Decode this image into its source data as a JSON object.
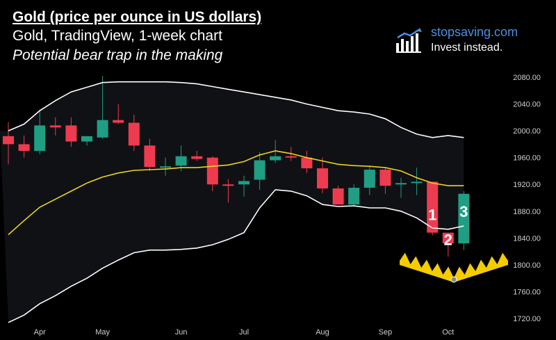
{
  "header": {
    "title": "Gold (price per ounce in US dollars)",
    "subtitle": "Gold, TradingView, 1-week chart",
    "caption": "Potential bear trap in the making"
  },
  "brand": {
    "name": "stopsaving.com",
    "tagline": "Invest instead.",
    "icon": "bar-chart-arrow-icon"
  },
  "colors": {
    "background": "#000000",
    "band_fill": "#0f1115",
    "band_line": "#ffffff",
    "basis_line": "#f0d21e",
    "up": "#1f9e84",
    "down": "#ef3b4f",
    "marker_fill": "#f5cc00",
    "axis_text": "#cfcfcf"
  },
  "chart_data": {
    "type": "candlestick",
    "interval": "1 week",
    "ylim": [
      1710,
      2100
    ],
    "yticks": [
      1720,
      1760,
      1800,
      1840,
      1880,
      1920,
      1960,
      2000,
      2040,
      2080
    ],
    "ytick_labels": [
      "1720.00",
      "1760.00",
      "1800.00",
      "1840.00",
      "1880.00",
      "1920.00",
      "1960.00",
      "2000.00",
      "2040.00",
      "2080.00"
    ],
    "xtick_labels": [
      {
        "label": "Apr",
        "index": 2
      },
      {
        "label": "May",
        "index": 6
      },
      {
        "label": "Jun",
        "index": 11
      },
      {
        "label": "Jul",
        "index": 15
      },
      {
        "label": "Aug",
        "index": 20
      },
      {
        "label": "Sep",
        "index": 24
      },
      {
        "label": "Oct",
        "index": 28
      }
    ],
    "candles": [
      {
        "o": 1992,
        "h": 2013,
        "l": 1950,
        "c": 1980
      },
      {
        "o": 1980,
        "h": 1993,
        "l": 1960,
        "c": 1970
      },
      {
        "o": 1970,
        "h": 2032,
        "l": 1965,
        "c": 2008
      },
      {
        "o": 2008,
        "h": 2020,
        "l": 1993,
        "c": 2005
      },
      {
        "o": 2008,
        "h": 2020,
        "l": 1976,
        "c": 1984
      },
      {
        "o": 1984,
        "h": 1992,
        "l": 1978,
        "c": 1992
      },
      {
        "o": 1990,
        "h": 2082,
        "l": 1988,
        "c": 2016
      },
      {
        "o": 2016,
        "h": 2040,
        "l": 2010,
        "c": 2012
      },
      {
        "o": 2012,
        "h": 2024,
        "l": 1970,
        "c": 1978
      },
      {
        "o": 1978,
        "h": 1988,
        "l": 1940,
        "c": 1946
      },
      {
        "o": 1946,
        "h": 1960,
        "l": 1933,
        "c": 1947
      },
      {
        "o": 1948,
        "h": 1978,
        "l": 1940,
        "c": 1962
      },
      {
        "o": 1962,
        "h": 1970,
        "l": 1955,
        "c": 1958
      },
      {
        "o": 1960,
        "h": 1962,
        "l": 1910,
        "c": 1920
      },
      {
        "o": 1920,
        "h": 1928,
        "l": 1893,
        "c": 1919
      },
      {
        "o": 1920,
        "h": 1933,
        "l": 1902,
        "c": 1925
      },
      {
        "o": 1927,
        "h": 1968,
        "l": 1912,
        "c": 1956
      },
      {
        "o": 1956,
        "h": 1986,
        "l": 1952,
        "c": 1962
      },
      {
        "o": 1962,
        "h": 1976,
        "l": 1955,
        "c": 1960
      },
      {
        "o": 1960,
        "h": 1970,
        "l": 1937,
        "c": 1944
      },
      {
        "o": 1944,
        "h": 1960,
        "l": 1907,
        "c": 1914
      },
      {
        "o": 1914,
        "h": 1918,
        "l": 1890,
        "c": 1890
      },
      {
        "o": 1890,
        "h": 1920,
        "l": 1888,
        "c": 1915
      },
      {
        "o": 1915,
        "h": 1948,
        "l": 1904,
        "c": 1942
      },
      {
        "o": 1942,
        "h": 1946,
        "l": 1906,
        "c": 1918
      },
      {
        "o": 1920,
        "h": 1930,
        "l": 1900,
        "c": 1922
      },
      {
        "o": 1922,
        "h": 1945,
        "l": 1904,
        "c": 1924
      },
      {
        "o": 1924,
        "h": 1924,
        "l": 1844,
        "c": 1848
      },
      {
        "o": 1848,
        "h": 1848,
        "l": 1812,
        "c": 1832
      },
      {
        "o": 1832,
        "h": 1910,
        "l": 1822,
        "c": 1906
      }
    ],
    "upper_band": [
      2000,
      2010,
      2030,
      2045,
      2058,
      2065,
      2072,
      2073,
      2073,
      2073,
      2073,
      2072,
      2070,
      2066,
      2062,
      2058,
      2054,
      2050,
      2046,
      2040,
      2035,
      2030,
      2028,
      2025,
      2018,
      2005,
      1995,
      1990,
      1993,
      1990
    ],
    "basis": [
      1845,
      1866,
      1886,
      1898,
      1910,
      1922,
      1931,
      1937,
      1941,
      1942,
      1943,
      1945,
      1945,
      1947,
      1949,
      1954,
      1964,
      1970,
      1966,
      1960,
      1955,
      1950,
      1948,
      1947,
      1945,
      1940,
      1930,
      1922,
      1918,
      1918
    ],
    "lower_band": [
      1714,
      1725,
      1742,
      1754,
      1768,
      1780,
      1795,
      1807,
      1818,
      1822,
      1822,
      1823,
      1825,
      1830,
      1838,
      1848,
      1885,
      1912,
      1910,
      1903,
      1890,
      1887,
      1888,
      1885,
      1885,
      1880,
      1870,
      1855,
      1853,
      1858
    ],
    "annotations": [
      {
        "label": "1",
        "index": 27,
        "value": 1875
      },
      {
        "label": "2",
        "index": 28,
        "value": 1838
      },
      {
        "label": "3",
        "index": 29,
        "value": 1880
      }
    ]
  }
}
